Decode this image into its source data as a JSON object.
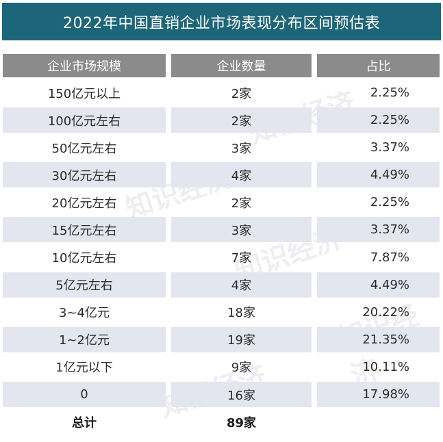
{
  "title": "2022年中国直销企业市场表现分布区间预估表",
  "headers": [
    "企业市场规模",
    "企业数量",
    "占比"
  ],
  "rows": [
    {
      "scale": "150亿元以上",
      "count": "2家",
      "pct": "2.25%"
    },
    {
      "scale": "100亿元左右",
      "count": "2家",
      "pct": "2.25%"
    },
    {
      "scale": "50亿元左右",
      "count": "3家",
      "pct": "3.37%"
    },
    {
      "scale": "30亿元左右",
      "count": "4家",
      "pct": "4.49%"
    },
    {
      "scale": "20亿元左右",
      "count": "2家",
      "pct": "2.25%"
    },
    {
      "scale": "15亿元左右",
      "count": "3家",
      "pct": "3.37%"
    },
    {
      "scale": "10亿元左右",
      "count": "7家",
      "pct": "7.87%"
    },
    {
      "scale": "5亿元左右",
      "count": "4家",
      "pct": "4.49%"
    },
    {
      "scale": "3~4亿元",
      "count": "18家",
      "pct": "20.22%"
    },
    {
      "scale": "1~2亿元",
      "count": "19家",
      "pct": "21.35%"
    },
    {
      "scale": "1亿元以下",
      "count": "9家",
      "pct": "10.11%"
    },
    {
      "scale": "0",
      "count": "16家",
      "pct": "17.98%"
    }
  ],
  "total": {
    "label": "总计",
    "count": "89家"
  },
  "watermark": "知识经济"
}
